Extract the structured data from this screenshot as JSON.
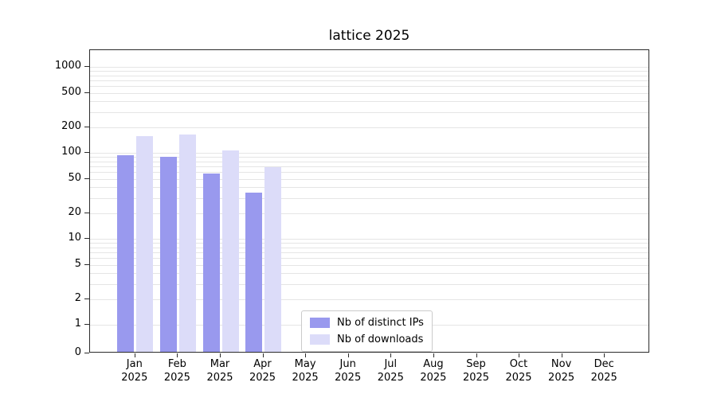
{
  "title": "lattice 2025",
  "axes": {
    "x_months": [
      "Jan",
      "Feb",
      "Mar",
      "Apr",
      "May",
      "Jun",
      "Jul",
      "Aug",
      "Sep",
      "Oct",
      "Nov",
      "Dec"
    ],
    "x_year": "2025",
    "y_tick_values": [
      0,
      1,
      2,
      5,
      10,
      20,
      50,
      100,
      200,
      500,
      1000
    ]
  },
  "legend": {
    "items": [
      {
        "label": "Nb of distinct IPs",
        "color": "#9999ee"
      },
      {
        "label": "Nb of downloads",
        "color": "#dcdcf9"
      }
    ]
  },
  "chart_data": {
    "type": "bar",
    "title": "lattice 2025",
    "categories": [
      "Jan 2025",
      "Feb 2025",
      "Mar 2025",
      "Apr 2025",
      "May 2025",
      "Jun 2025",
      "Jul 2025",
      "Aug 2025",
      "Sep 2025",
      "Oct 2025",
      "Nov 2025",
      "Dec 2025"
    ],
    "series": [
      {
        "name": "Nb of distinct IPs",
        "color": "#9999ee",
        "values": [
          90,
          87,
          55,
          33,
          0,
          0,
          0,
          0,
          0,
          0,
          0,
          0
        ]
      },
      {
        "name": "Nb of downloads",
        "color": "#dcdcf9",
        "values": [
          150,
          157,
          102,
          65,
          0,
          0,
          0,
          0,
          0,
          0,
          0,
          0
        ]
      }
    ],
    "xlabel": "",
    "ylabel": "",
    "yscale": "symlog",
    "yticks": [
      0,
      1,
      2,
      5,
      10,
      20,
      50,
      100,
      200,
      500,
      1000
    ],
    "ylim": [
      0,
      1500
    ],
    "grid": true,
    "grid_axis": "y",
    "legend_position": "lower center"
  }
}
